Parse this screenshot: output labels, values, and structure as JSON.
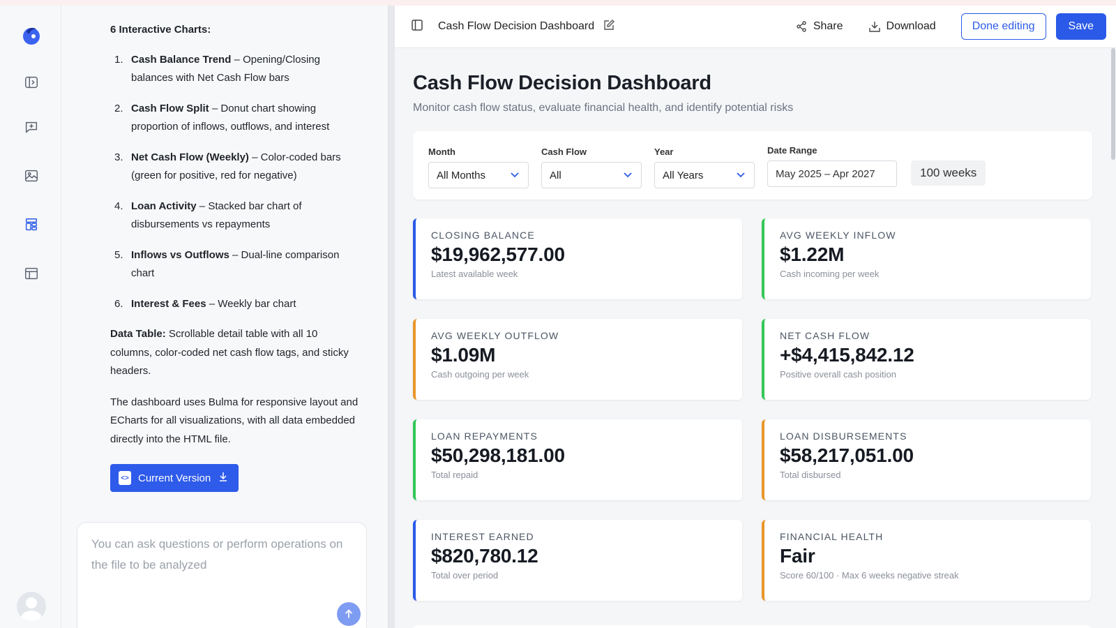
{
  "colors": {
    "blue": "#2b5ae8",
    "green": "#34c759",
    "orange": "#e8972b"
  },
  "rail": {
    "icons": [
      "app-logo-icon",
      "panel-toggle-icon",
      "new-chat-icon",
      "image-gallery-icon",
      "dashboard-icon",
      "table-layout-icon",
      "avatar-icon"
    ]
  },
  "chat": {
    "heading": "6 Interactive Charts:",
    "items": [
      {
        "num": "1.",
        "bold": "Cash Balance Trend",
        "rest": " – Opening/Closing balances with Net Cash Flow bars"
      },
      {
        "num": "2.",
        "bold": "Cash Flow Split",
        "rest": " – Donut chart showing proportion of inflows, outflows, and interest"
      },
      {
        "num": "3.",
        "bold": "Net Cash Flow (Weekly)",
        "rest": " – Color-coded bars (green for positive, red for negative)"
      },
      {
        "num": "4.",
        "bold": "Loan Activity",
        "rest": " – Stacked bar chart of disbursements vs repayments"
      },
      {
        "num": "5.",
        "bold": "Inflows vs Outflows",
        "rest": " – Dual-line comparison chart"
      },
      {
        "num": "6.",
        "bold": "Interest & Fees",
        "rest": " – Weekly bar chart"
      }
    ],
    "table_bold": "Data Table:",
    "table_rest": " Scrollable detail table with all 10 columns, color-coded net cash flow tags, and sticky headers.",
    "closing": "The dashboard uses Bulma for responsive layout and ECharts for all visualizations, with all data embedded directly into the HTML file.",
    "version_button": "Current Version",
    "input_placeholder": "You can ask questions or perform operations on the file to be analyzed"
  },
  "toolbar": {
    "title": "Cash Flow Decision Dashboard",
    "share": "Share",
    "download": "Download",
    "done_editing": "Done editing",
    "save": "Save"
  },
  "dashboard": {
    "title": "Cash Flow Decision Dashboard",
    "subtitle": "Monitor cash flow status, evaluate financial health, and identify potential risks",
    "filters": {
      "month": {
        "label": "Month",
        "value": "All Months"
      },
      "cash_flow": {
        "label": "Cash Flow",
        "value": "All"
      },
      "year": {
        "label": "Year",
        "value": "All Years"
      },
      "date_range": {
        "label": "Date Range",
        "value": "May 2025 – Apr 2027"
      },
      "weeks": "100 weeks"
    },
    "cards": [
      {
        "label": "CLOSING BALANCE",
        "value": "$19,962,577.00",
        "hint": "Latest available week",
        "accent": "#2b5ae8"
      },
      {
        "label": "AVG WEEKLY INFLOW",
        "value": "$1.22M",
        "hint": "Cash incoming per week",
        "accent": "#34c759"
      },
      {
        "label": "AVG WEEKLY OUTFLOW",
        "value": "$1.09M",
        "hint": "Cash outgoing per week",
        "accent": "#e8972b"
      },
      {
        "label": "NET CASH FLOW",
        "value": "+$4,415,842.12",
        "hint": "Positive overall cash position",
        "accent": "#34c759"
      },
      {
        "label": "LOAN REPAYMENTS",
        "value": "$50,298,181.00",
        "hint": "Total repaid",
        "accent": "#34c759"
      },
      {
        "label": "LOAN DISBURSEMENTS",
        "value": "$58,217,051.00",
        "hint": "Total disbursed",
        "accent": "#e8972b"
      },
      {
        "label": "INTEREST EARNED",
        "value": "$820,780.12",
        "hint": "Total over period",
        "accent": "#2b5ae8"
      },
      {
        "label": "FINANCIAL HEALTH",
        "value": "Fair",
        "hint": "Score 60/100 · Max 6 weeks negative streak",
        "accent": "#e8972b"
      }
    ]
  }
}
